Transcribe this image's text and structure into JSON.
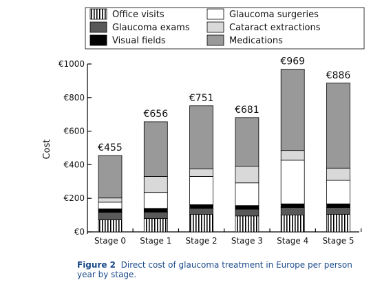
{
  "chart_data": {
    "type": "bar",
    "stacked": true,
    "categories": [
      "Stage 0",
      "Stage 1",
      "Stage 2",
      "Stage 3",
      "Stage 4",
      "Stage 5"
    ],
    "totals_labels": [
      "€455",
      "€656",
      "€751",
      "€681",
      "€969",
      "€886"
    ],
    "ylabel": "Cost",
    "xlabel": "",
    "ylim": [
      0,
      1000
    ],
    "yticks": [
      0,
      200,
      400,
      600,
      800,
      1000
    ],
    "ytick_labels": [
      "€0",
      "€200",
      "€400",
      "€600",
      "€800",
      "€1000"
    ],
    "legend_position": "top",
    "series": [
      {
        "name": "Office visits",
        "pattern": "vstripes",
        "color": "#000000",
        "values": [
          72,
          80,
          105,
          95,
          100,
          105
        ]
      },
      {
        "name": "Glaucoma exams",
        "pattern": "solid",
        "color": "#595959",
        "values": [
          45,
          38,
          35,
          40,
          45,
          40
        ]
      },
      {
        "name": "Visual fields",
        "pattern": "solid",
        "color": "#000000",
        "values": [
          20,
          22,
          22,
          22,
          22,
          22
        ]
      },
      {
        "name": "Glaucoma surgeries",
        "pattern": "solid",
        "color": "#ffffff",
        "values": [
          40,
          95,
          168,
          135,
          260,
          140
        ]
      },
      {
        "name": "Cataract extractions",
        "pattern": "solid",
        "color": "#d9d9d9",
        "values": [
          25,
          95,
          45,
          100,
          58,
          73
        ]
      },
      {
        "name": "Medications",
        "pattern": "solid",
        "color": "#999999",
        "values": [
          253,
          326,
          376,
          289,
          484,
          506
        ]
      }
    ]
  },
  "caption": {
    "label": "Figure 2",
    "text": "Direct cost of glaucoma treatment in Europe per person year by stage."
  }
}
